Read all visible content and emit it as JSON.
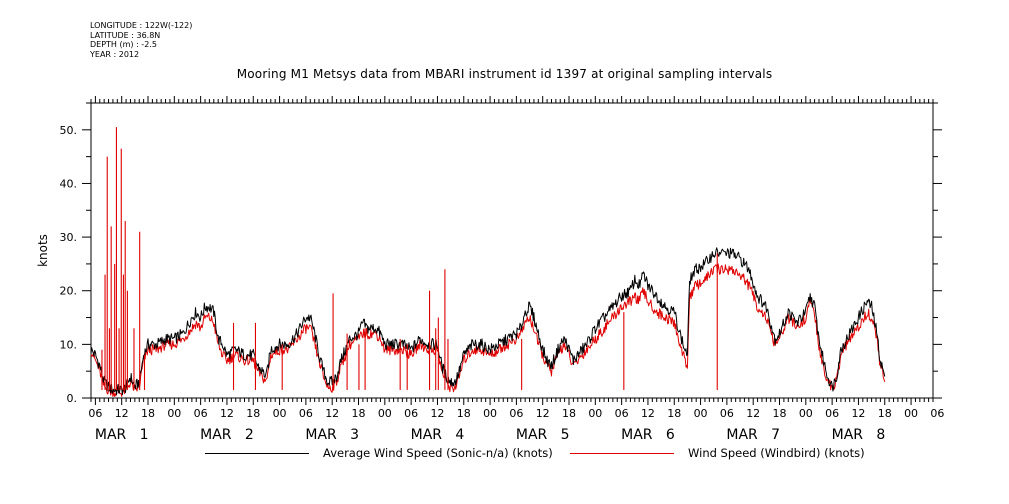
{
  "meta": {
    "longitude": "LONGITUDE : 122W(-122)",
    "latitude": "LATITUDE : 36.8N",
    "depth": "DEPTH (m) : -2.5",
    "year": "YEAR : 2012"
  },
  "chart_data": {
    "type": "line",
    "title": "Mooring M1 Metsys data from MBARI instrument id 1397 at original sampling intervals",
    "xlabel": "",
    "ylabel": "knots",
    "xlim_hours": [
      5,
      197
    ],
    "ylim": [
      0,
      55
    ],
    "yticks": [
      0,
      10,
      20,
      30,
      40,
      50
    ],
    "yticklabels": [
      "0.",
      "10.",
      "20.",
      "30.",
      "40.",
      "50."
    ],
    "x_tick_labels": [
      "06",
      "12",
      "18",
      "00",
      "06",
      "12",
      "18",
      "00",
      "06",
      "12",
      "18",
      "00",
      "06",
      "12",
      "18",
      "00",
      "06",
      "12",
      "18",
      "00",
      "06",
      "12",
      "18",
      "00",
      "06",
      "12",
      "18",
      "00",
      "06",
      "12",
      "18",
      "00",
      "06"
    ],
    "x_tick_hours": [
      6,
      12,
      18,
      24,
      30,
      36,
      42,
      48,
      54,
      60,
      66,
      72,
      78,
      84,
      90,
      96,
      102,
      108,
      114,
      120,
      126,
      132,
      138,
      144,
      150,
      156,
      162,
      168,
      174,
      180,
      186,
      192,
      198
    ],
    "day_labels": [
      {
        "text": "MAR   1",
        "hour": 12
      },
      {
        "text": "MAR   2",
        "hour": 36
      },
      {
        "text": "MAR   3",
        "hour": 60
      },
      {
        "text": "MAR   4",
        "hour": 84
      },
      {
        "text": "MAR   5",
        "hour": 108
      },
      {
        "text": "MAR   6",
        "hour": 132
      },
      {
        "text": "MAR   7",
        "hour": 156
      },
      {
        "text": "MAR   8",
        "hour": 180
      }
    ],
    "series": [
      {
        "name": "Average Wind Speed (Sonic-n/a) (knots)",
        "color": "#000000",
        "points": [
          [
            5,
            9
          ],
          [
            6,
            8
          ],
          [
            7,
            6
          ],
          [
            8,
            3
          ],
          [
            9,
            2
          ],
          [
            10,
            1.5
          ],
          [
            11,
            1.5
          ],
          [
            12,
            1.5
          ],
          [
            13,
            2
          ],
          [
            14,
            4
          ],
          [
            15,
            2
          ],
          [
            16,
            3
          ],
          [
            17,
            8
          ],
          [
            18,
            10
          ],
          [
            20,
            10
          ],
          [
            22,
            11
          ],
          [
            24,
            11
          ],
          [
            26,
            12
          ],
          [
            28,
            15
          ],
          [
            29,
            16
          ],
          [
            30,
            15
          ],
          [
            31,
            17
          ],
          [
            32,
            17
          ],
          [
            33,
            16
          ],
          [
            34,
            11
          ],
          [
            35,
            10
          ],
          [
            36,
            8
          ],
          [
            38,
            9
          ],
          [
            40,
            8
          ],
          [
            42,
            8
          ],
          [
            43,
            6
          ],
          [
            44,
            5
          ],
          [
            45,
            4
          ],
          [
            46,
            9
          ],
          [
            48,
            10
          ],
          [
            50,
            10
          ],
          [
            52,
            12
          ],
          [
            54,
            15
          ],
          [
            55,
            15
          ],
          [
            56,
            12
          ],
          [
            57,
            8
          ],
          [
            58,
            5
          ],
          [
            59,
            3
          ],
          [
            60,
            3
          ],
          [
            61,
            4
          ],
          [
            62,
            7
          ],
          [
            64,
            11
          ],
          [
            66,
            12
          ],
          [
            67,
            14
          ],
          [
            68,
            13
          ],
          [
            70,
            13
          ],
          [
            71,
            12
          ],
          [
            72,
            10
          ],
          [
            74,
            10
          ],
          [
            76,
            10
          ],
          [
            78,
            9
          ],
          [
            80,
            11
          ],
          [
            82,
            10
          ],
          [
            84,
            10
          ],
          [
            85,
            6
          ],
          [
            86,
            4
          ],
          [
            87,
            3
          ],
          [
            88,
            3
          ],
          [
            89,
            5
          ],
          [
            90,
            8
          ],
          [
            92,
            10
          ],
          [
            94,
            10
          ],
          [
            96,
            9
          ],
          [
            98,
            10
          ],
          [
            100,
            11
          ],
          [
            102,
            12
          ],
          [
            103,
            13
          ],
          [
            104,
            16
          ],
          [
            105,
            17
          ],
          [
            106,
            15
          ],
          [
            107,
            12
          ],
          [
            108,
            9
          ],
          [
            109,
            7
          ],
          [
            110,
            6
          ],
          [
            111,
            8
          ],
          [
            112,
            10
          ],
          [
            113,
            11
          ],
          [
            114,
            9
          ],
          [
            115,
            7
          ],
          [
            116,
            8
          ],
          [
            118,
            10
          ],
          [
            120,
            13
          ],
          [
            122,
            15
          ],
          [
            124,
            17
          ],
          [
            126,
            19
          ],
          [
            128,
            20
          ],
          [
            129,
            22
          ],
          [
            130,
            21
          ],
          [
            131,
            23
          ],
          [
            132,
            21
          ],
          [
            134,
            19
          ],
          [
            136,
            17
          ],
          [
            138,
            16
          ],
          [
            139,
            13
          ],
          [
            140,
            10
          ],
          [
            141,
            8
          ],
          [
            141.5,
            22
          ],
          [
            143,
            24
          ],
          [
            145,
            25
          ],
          [
            147,
            27
          ],
          [
            149,
            27
          ],
          [
            151,
            27
          ],
          [
            153,
            26
          ],
          [
            155,
            24
          ],
          [
            157,
            19
          ],
          [
            159,
            17
          ],
          [
            160,
            14
          ],
          [
            161,
            11
          ],
          [
            162,
            12
          ],
          [
            164,
            16
          ],
          [
            166,
            14
          ],
          [
            168,
            16
          ],
          [
            169,
            19
          ],
          [
            170,
            17
          ],
          [
            171,
            11
          ],
          [
            172,
            7
          ],
          [
            173,
            4
          ],
          [
            174,
            2
          ],
          [
            175,
            4
          ],
          [
            176,
            9
          ],
          [
            178,
            12
          ],
          [
            180,
            15
          ],
          [
            182,
            18
          ],
          [
            183,
            17
          ],
          [
            184,
            13
          ],
          [
            185,
            7
          ],
          [
            186,
            4
          ]
        ]
      },
      {
        "name": "Wind Speed (Windbird) (knots)",
        "color": "#e00000",
        "points": [
          [
            5,
            9
          ],
          [
            6,
            7
          ],
          [
            7,
            5
          ],
          [
            8,
            2
          ],
          [
            9,
            1.5
          ],
          [
            10,
            1
          ],
          [
            11,
            1
          ],
          [
            12,
            1
          ],
          [
            13,
            1.5
          ],
          [
            14,
            3
          ],
          [
            15,
            1.5
          ],
          [
            16,
            2
          ],
          [
            17,
            7
          ],
          [
            18,
            9
          ],
          [
            20,
            9
          ],
          [
            22,
            10
          ],
          [
            24,
            10
          ],
          [
            26,
            11
          ],
          [
            28,
            13
          ],
          [
            29,
            14
          ],
          [
            30,
            13
          ],
          [
            31,
            15
          ],
          [
            32,
            15
          ],
          [
            33,
            14
          ],
          [
            34,
            10
          ],
          [
            35,
            8
          ],
          [
            36,
            7
          ],
          [
            38,
            8
          ],
          [
            40,
            7
          ],
          [
            42,
            7
          ],
          [
            43,
            5
          ],
          [
            44,
            4
          ],
          [
            45,
            3
          ],
          [
            46,
            8
          ],
          [
            48,
            9
          ],
          [
            50,
            9
          ],
          [
            52,
            11
          ],
          [
            54,
            13
          ],
          [
            55,
            13
          ],
          [
            56,
            10
          ],
          [
            57,
            7
          ],
          [
            58,
            4
          ],
          [
            59,
            2
          ],
          [
            60,
            2
          ],
          [
            61,
            3
          ],
          [
            62,
            6
          ],
          [
            64,
            10
          ],
          [
            66,
            11
          ],
          [
            67,
            12
          ],
          [
            68,
            12
          ],
          [
            70,
            12
          ],
          [
            71,
            11
          ],
          [
            72,
            9
          ],
          [
            74,
            9
          ],
          [
            76,
            9
          ],
          [
            78,
            8
          ],
          [
            80,
            10
          ],
          [
            82,
            9
          ],
          [
            84,
            9
          ],
          [
            85,
            5
          ],
          [
            86,
            3
          ],
          [
            87,
            2
          ],
          [
            88,
            2
          ],
          [
            89,
            4
          ],
          [
            90,
            7
          ],
          [
            92,
            9
          ],
          [
            94,
            9
          ],
          [
            96,
            8
          ],
          [
            98,
            9
          ],
          [
            100,
            10
          ],
          [
            102,
            11
          ],
          [
            103,
            12
          ],
          [
            104,
            14
          ],
          [
            105,
            15
          ],
          [
            106,
            13
          ],
          [
            107,
            10
          ],
          [
            108,
            8
          ],
          [
            109,
            6
          ],
          [
            110,
            5
          ],
          [
            111,
            7
          ],
          [
            112,
            9
          ],
          [
            113,
            10
          ],
          [
            114,
            8
          ],
          [
            115,
            6
          ],
          [
            116,
            7
          ],
          [
            118,
            9
          ],
          [
            120,
            11
          ],
          [
            122,
            13
          ],
          [
            124,
            15
          ],
          [
            126,
            17
          ],
          [
            128,
            18
          ],
          [
            129,
            19
          ],
          [
            130,
            18
          ],
          [
            131,
            20
          ],
          [
            132,
            18
          ],
          [
            134,
            16
          ],
          [
            136,
            15
          ],
          [
            138,
            14
          ],
          [
            139,
            11
          ],
          [
            140,
            8
          ],
          [
            141,
            6
          ],
          [
            141.5,
            19
          ],
          [
            143,
            21
          ],
          [
            145,
            22
          ],
          [
            147,
            24
          ],
          [
            149,
            24
          ],
          [
            151,
            24
          ],
          [
            153,
            23
          ],
          [
            155,
            21
          ],
          [
            157,
            17
          ],
          [
            159,
            15
          ],
          [
            160,
            12
          ],
          [
            161,
            10
          ],
          [
            162,
            11
          ],
          [
            164,
            15
          ],
          [
            166,
            13
          ],
          [
            168,
            15
          ],
          [
            169,
            18
          ],
          [
            170,
            16
          ],
          [
            171,
            9
          ],
          [
            172,
            6
          ],
          [
            173,
            3
          ],
          [
            174,
            2
          ],
          [
            175,
            3
          ],
          [
            176,
            8
          ],
          [
            178,
            11
          ],
          [
            180,
            13
          ],
          [
            182,
            16
          ],
          [
            183,
            15
          ],
          [
            184,
            12
          ],
          [
            185,
            6
          ],
          [
            186,
            3
          ]
        ]
      }
    ],
    "spikes": {
      "color": "#e00000",
      "points": [
        [
          7.5,
          9
        ],
        [
          8.2,
          23
        ],
        [
          8.7,
          45
        ],
        [
          9.2,
          13
        ],
        [
          9.6,
          32
        ],
        [
          10.4,
          25
        ],
        [
          10.8,
          50.5
        ],
        [
          11.4,
          13
        ],
        [
          11.9,
          46.5
        ],
        [
          12.4,
          23
        ],
        [
          12.8,
          33
        ],
        [
          13.3,
          20
        ],
        [
          14.8,
          13
        ],
        [
          16.1,
          31
        ],
        [
          17.2,
          8
        ],
        [
          37.5,
          14
        ],
        [
          42.5,
          14
        ],
        [
          48.6,
          10
        ],
        [
          60.2,
          19.5
        ],
        [
          63.4,
          12
        ],
        [
          66.1,
          10
        ],
        [
          67.5,
          13
        ],
        [
          82.2,
          20
        ],
        [
          83.6,
          13
        ],
        [
          84.2,
          15
        ],
        [
          85.7,
          24
        ],
        [
          86.4,
          11
        ],
        [
          75.5,
          11
        ],
        [
          77.1,
          10
        ],
        [
          103.2,
          11
        ],
        [
          126.5,
          16
        ],
        [
          147.8,
          27
        ]
      ]
    },
    "grid": false,
    "legend_position": "bottom"
  }
}
